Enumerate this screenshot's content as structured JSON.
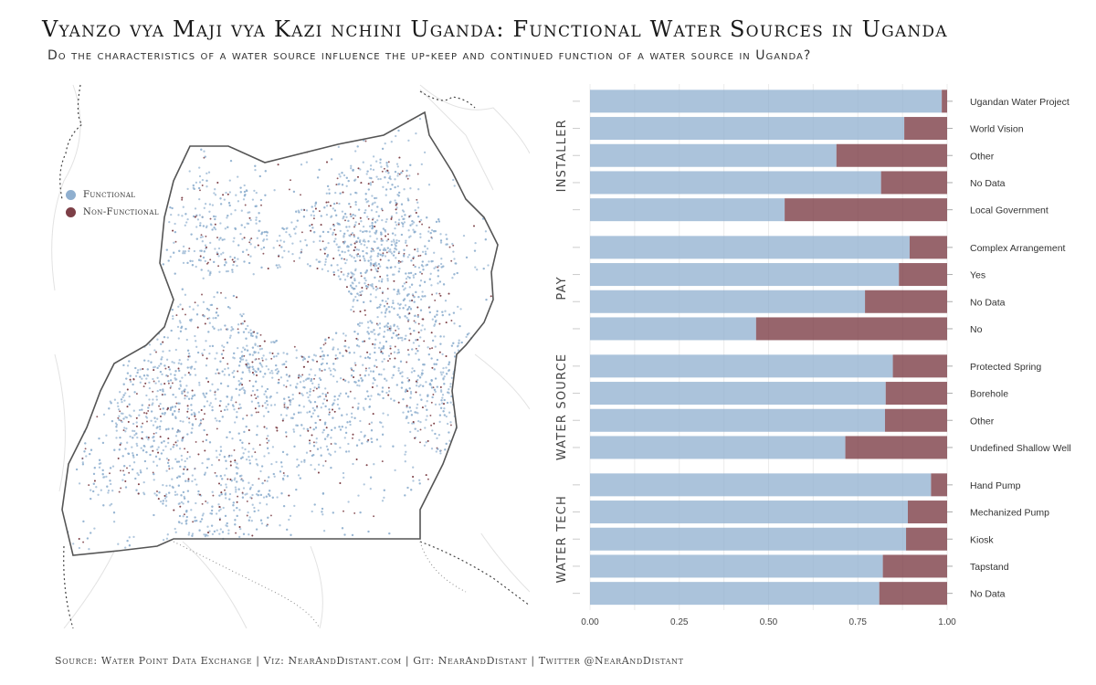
{
  "title": "Vyanzo vya Maji vya Kazi nchini Uganda: Functional Water Sources in Uganda",
  "subtitle": "Do the characteristics of a water source influence the up-keep and continued function of a water source in Uganda?",
  "footer": "Source: Water Point Data Exchange | Viz: NearAndDistant.com | Git: NearAndDistant | Twitter @NearAndDistant",
  "colors": {
    "functional": "#8fafcf",
    "non_functional": "#7d3f47",
    "border": "#555555"
  },
  "legend": [
    {
      "label": "Functional",
      "color": "#8fafcf"
    },
    {
      "label": "Non-Functional",
      "color": "#7d3f47"
    }
  ],
  "chart_data": [
    {
      "type": "map",
      "legend": [
        "Functional",
        "Non-Functional"
      ],
      "description_of_points": "dot density of water points across Uganda"
    },
    {
      "type": "bar",
      "orientation": "horizontal",
      "stacked": true,
      "xlim": [
        0,
        1
      ],
      "xticks": [
        "0.00",
        "0.25",
        "0.50",
        "0.75",
        "1.00"
      ],
      "series": [
        {
          "name": "Functional",
          "color": "#8fafcf"
        },
        {
          "name": "Non-Functional",
          "color": "#7d3f47"
        }
      ],
      "facets": [
        {
          "name": "Installer",
          "categories": [
            "Ugandan Water Project",
            "World Vision",
            "Other",
            "No Data",
            "Local Government"
          ],
          "functional": [
            0.985,
            0.88,
            0.69,
            0.815,
            0.545
          ]
        },
        {
          "name": "Pay",
          "categories": [
            "Complex Arrangement",
            "Yes",
            "No Data",
            "No"
          ],
          "functional": [
            0.895,
            0.865,
            0.77,
            0.465
          ]
        },
        {
          "name": "Water Source",
          "categories": [
            "Protected Spring",
            "Borehole",
            "Other",
            "Undefined Shallow Well"
          ],
          "functional": [
            0.848,
            0.828,
            0.826,
            0.715
          ]
        },
        {
          "name": "Water Tech",
          "categories": [
            "Hand Pump",
            "Mechanized Pump",
            "Kiosk",
            "Tapstand",
            "No Data"
          ],
          "functional": [
            0.955,
            0.89,
            0.885,
            0.82,
            0.81
          ]
        }
      ]
    }
  ]
}
